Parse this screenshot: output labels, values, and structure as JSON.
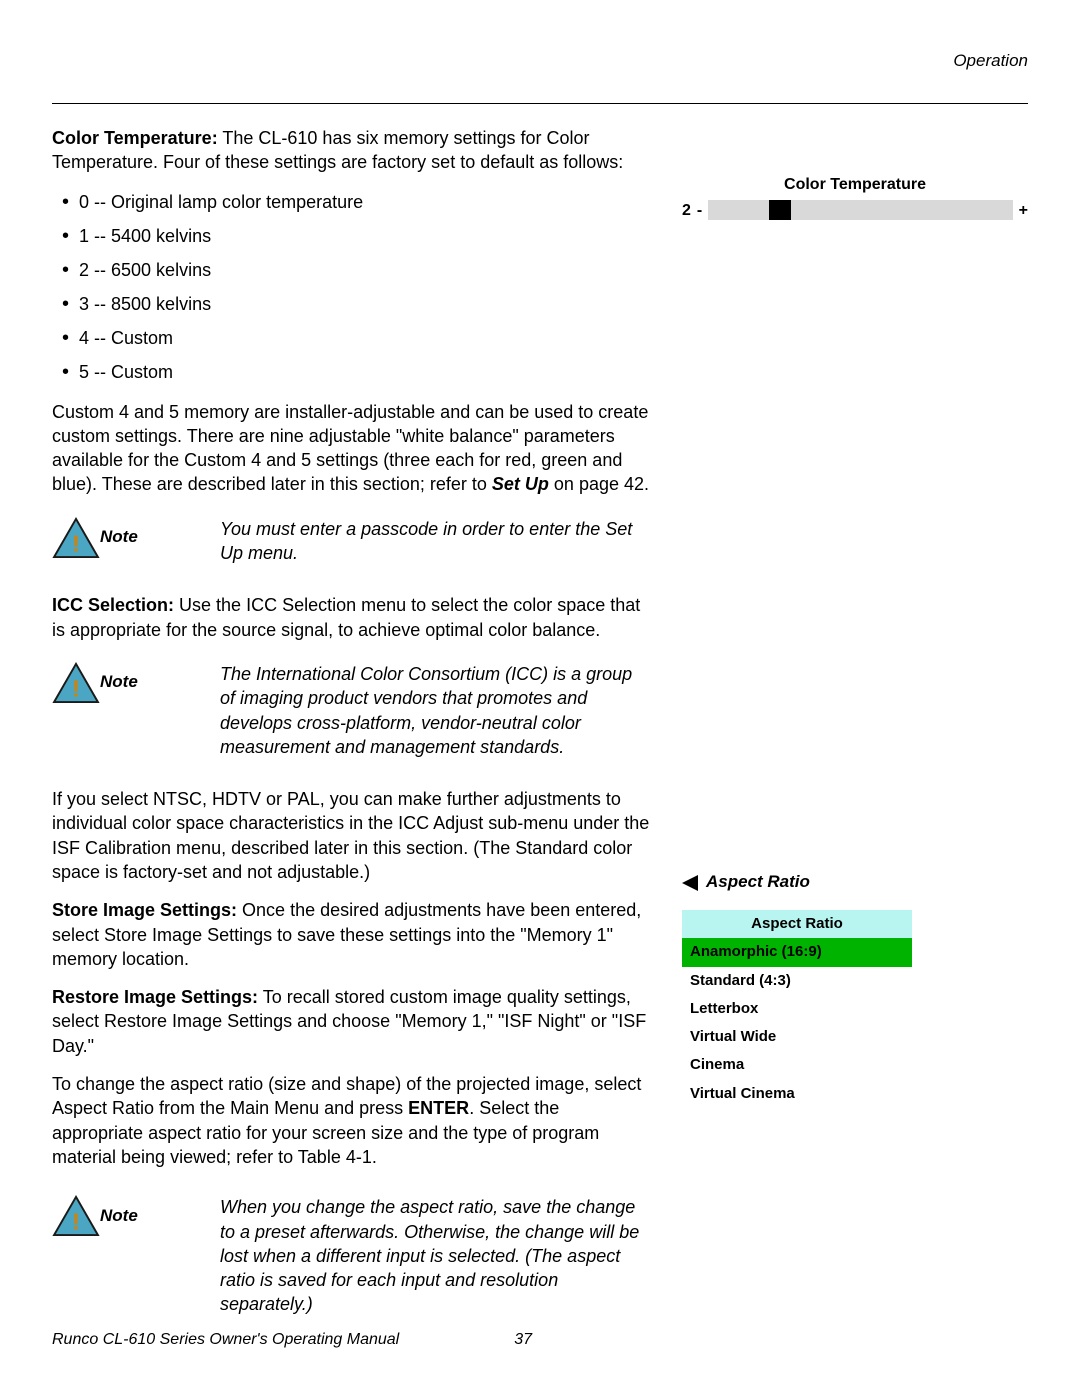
{
  "header": {
    "section": "Operation"
  },
  "colorTemp": {
    "heading": "Color Temperature:",
    "intro": " The CL-610 has six memory settings for Color Temperature. Four of these settings are factory set to default as follows:",
    "items": [
      "0 -- Original lamp color temperature",
      "1 -- 5400 kelvins",
      "2 -- 6500 kelvins",
      "3 -- 8500 kelvins",
      "4 -- Custom",
      "5 -- Custom"
    ],
    "custom_para_1": "Custom 4 and 5 memory are installer-adjustable and can be used to create custom settings. There are nine adjustable \"white balance\" parameters available for the Custom 4 and 5 settings (three each for red, green and blue). These are described later in this section; refer to ",
    "custom_para_bold": "Set Up",
    "custom_para_2": " on page 42."
  },
  "ct_widget": {
    "title": "Color Temperature",
    "value": "2",
    "minus": "-",
    "plus": "+",
    "bar_bg": "#d9d9d9",
    "marker_color": "#000000",
    "marker_left_pct": 20
  },
  "note1": {
    "label": "Note",
    "text": "You must enter a passcode in order to enter the Set Up menu."
  },
  "icc": {
    "heading": "ICC Selection:",
    "text": " Use the ICC Selection menu to select the color space that is appropriate for the source signal, to achieve optimal color balance."
  },
  "note2": {
    "label": "Note",
    "text": "The International Color Consortium (ICC) is a group of imaging product vendors that promotes and develops cross-platform, vendor-neutral color measurement and management standards."
  },
  "icc_para2": "If you select NTSC, HDTV or PAL, you can make further adjustments to individual color space characteristics in the ICC Adjust sub-menu under the ISF Calibration menu, described later in this section. (The Standard color space is factory-set and not adjustable.)",
  "store": {
    "heading": "Store Image Settings:",
    "text": " Once the desired adjustments have been entered, select Store Image Settings to save these settings into the \"Memory 1\" memory location."
  },
  "restore": {
    "heading": "Restore Image Settings:",
    "text": " To recall stored custom image quality settings, select Restore Image Settings and choose \"Memory 1,\" \"ISF Night\" or \"ISF Day.\""
  },
  "aspect": {
    "para_1": "To change the aspect ratio (size and shape) of the projected image, select Aspect Ratio from the Main Menu and press ",
    "enter": "ENTER",
    "para_2": ". Select the appropriate aspect ratio for your screen size and the type of program material being viewed; refer to Table 4-1.",
    "side_label": "Aspect Ratio",
    "menu_header": "Aspect Ratio",
    "menu_header_bg": "#b8f5f0",
    "menu_selected_bg": "#00b300",
    "options": [
      "Anamorphic (16:9)",
      "Standard (4:3)",
      "Letterbox",
      "Virtual Wide",
      "Cinema",
      "Virtual Cinema"
    ]
  },
  "note3": {
    "label": "Note",
    "text": "When you change the aspect ratio, save the change to a preset afterwards. Otherwise, the change will be lost when a different input is selected. (The aspect ratio is saved for each input and resolution separately.)"
  },
  "note_icon": {
    "triangle_fill": "#4aa6c2",
    "triangle_stroke": "#1a1a1a",
    "excl_fill": "#d98000"
  },
  "footer": {
    "title": "Runco CL-610 Series Owner's Operating Manual",
    "page": "37"
  }
}
